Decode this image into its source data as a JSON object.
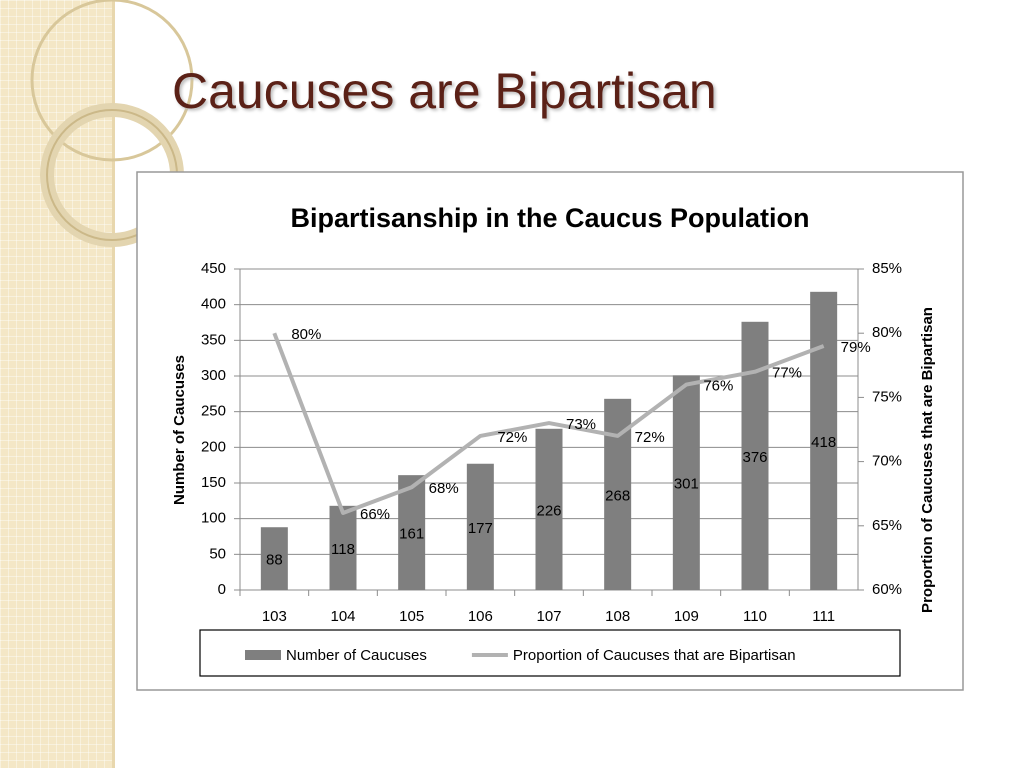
{
  "slide": {
    "title": "Caucuses are Bipartisan"
  },
  "chart_data": {
    "type": "bar",
    "title": "Bipartisanship in the Caucus Population",
    "y_label": "Number of Caucuses",
    "y2_label": "Proportion of Caucuses that are Bipartisan",
    "categories": [
      "103",
      "104",
      "105",
      "106",
      "107",
      "108",
      "109",
      "110",
      "111"
    ],
    "series": [
      {
        "name": "Number of Caucuses",
        "type": "bar",
        "color": "#7f7f7f",
        "values": [
          88,
          118,
          161,
          177,
          226,
          268,
          301,
          376,
          418
        ]
      },
      {
        "name": "Proportion of Caucuses that are Bipartisan",
        "type": "line",
        "axis": "y2",
        "color": "#b2b2b2",
        "values": [
          80,
          66,
          68,
          72,
          73,
          72,
          76,
          77,
          79
        ],
        "value_labels": [
          "80%",
          "66%",
          "68%",
          "72%",
          "73%",
          "72%",
          "76%",
          "77%",
          "79%"
        ]
      }
    ],
    "ylim": [
      0,
      450
    ],
    "yticks": [
      0,
      50,
      100,
      150,
      200,
      250,
      300,
      350,
      400,
      450
    ],
    "y2lim": [
      60,
      85
    ],
    "y2ticks": [
      {
        "value": 60,
        "label": "60%"
      },
      {
        "value": 65,
        "label": "65%"
      },
      {
        "value": 70,
        "label": "70%"
      },
      {
        "value": 75,
        "label": "75%"
      },
      {
        "value": 80,
        "label": "80%"
      },
      {
        "value": 85,
        "label": "85%"
      }
    ],
    "grid": true,
    "legend": "bottom"
  }
}
